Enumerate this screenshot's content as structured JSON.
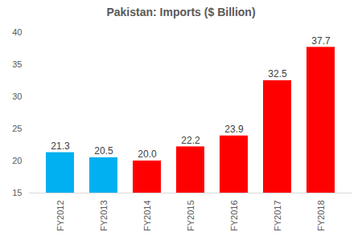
{
  "chart_data": {
    "type": "bar",
    "title": "Pakistan: Imports ($ Billion)",
    "categories": [
      "FY2012",
      "FY2013",
      "FY2014",
      "FY2015",
      "FY2016",
      "FY2017",
      "FY2018"
    ],
    "values": [
      21.3,
      20.5,
      20.0,
      22.2,
      23.9,
      32.5,
      37.7
    ],
    "value_labels": [
      "21.3",
      "20.5",
      "20.0",
      "22.2",
      "23.9",
      "32.5",
      "37.7"
    ],
    "colors": [
      "#00B0F0",
      "#00B0F0",
      "#FF0000",
      "#FF0000",
      "#FF0000",
      "#FF0000",
      "#FF0000"
    ],
    "ylim": [
      15,
      40
    ],
    "yticks": [
      15,
      20,
      25,
      30,
      35,
      40
    ],
    "grid": false,
    "data_labels": true
  }
}
